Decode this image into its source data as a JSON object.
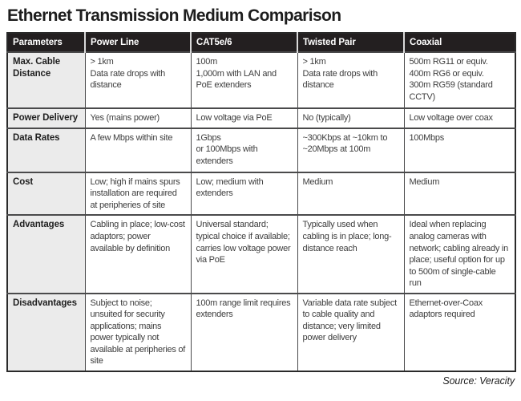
{
  "title": "Ethernet Transmission Medium Comparison",
  "source_credit": "Source: Veracity",
  "colors": {
    "header_bg": "#231f20",
    "header_text": "#ffffff",
    "param_col_bg": "#ebebeb",
    "grid_border": "#4a4a4b",
    "cell_text": "#3d3d3d",
    "title_text": "#1d1d1d"
  },
  "table": {
    "column_headers": [
      "Parameters",
      "Power Line",
      "CAT5e/6",
      "Twisted Pair",
      "Coaxial"
    ],
    "rows": [
      {
        "parameter": "Max. Cable Distance",
        "cells": [
          "> 1km\nData rate drops with distance",
          "100m\n1,000m with LAN and PoE extenders",
          "> 1km\nData rate drops with distance",
          "500m RG11 or equiv.\n400m RG6 or equiv.\n300m RG59 (standard CCTV)"
        ]
      },
      {
        "parameter": "Power Delivery",
        "cells": [
          "Yes (mains power)",
          "Low voltage via PoE",
          "No (typically)",
          "Low voltage over coax"
        ]
      },
      {
        "parameter": "Data Rates",
        "cells": [
          "A few Mbps within site",
          "1Gbps\nor 100Mbps with extenders",
          "~300Kbps at ~10km to ~20Mbps at 100m",
          "100Mbps"
        ]
      },
      {
        "parameter": "Cost",
        "cells": [
          "Low; high if mains spurs installation are required at peripheries of site",
          "Low; medium with extenders",
          "Medium",
          "Medium"
        ]
      },
      {
        "parameter": "Advantages",
        "cells": [
          "Cabling in place; low-cost adaptors; power available by definition",
          "Universal standard; typical choice if available; carries low voltage power via PoE",
          "Typically used when cabling is in place; long-distance reach",
          "Ideal when replacing analog cameras with network; cabling already in place; useful option for up to 500m of single-cable run"
        ]
      },
      {
        "parameter": "Disadvantages",
        "cells": [
          "Subject to noise; unsuited for security applications; mains power typically not available at peripheries of site",
          "100m range limit requires extenders",
          "Variable data rate subject to cable quality and distance; very limited power delivery",
          "Ethernet-over-Coax adaptors required"
        ]
      }
    ]
  }
}
